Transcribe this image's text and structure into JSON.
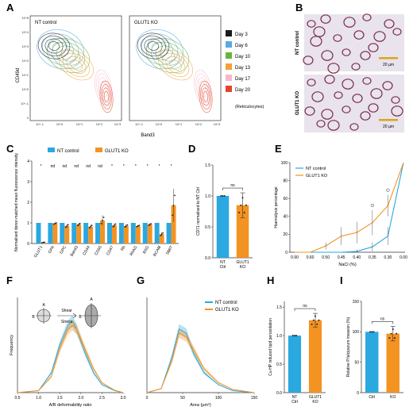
{
  "panel_letters": [
    "A",
    "B",
    "C",
    "D",
    "E",
    "F",
    "G",
    "H",
    "I"
  ],
  "colors": {
    "nt_control": "#2aa8e0",
    "glut1_ko": "#f39321",
    "day3": "#1a1a1a",
    "day6": "#5aa9e0",
    "day10": "#6cb33e",
    "day13": "#f2a23a",
    "day17": "#f6b8c8",
    "day20": "#e2452a",
    "cell_outline": "#7b2b52",
    "micrograph_bg": "#e8e3ec"
  },
  "panel_a": {
    "plots": [
      {
        "label": "NT control"
      },
      {
        "label": "GLUT1 KO"
      }
    ],
    "ylabel": "CD49d",
    "xlabel": "Band3",
    "y_ticks": [
      "10^5",
      "10^4",
      "10^3",
      "10^2",
      "10^1",
      "10^0",
      "10^-1",
      "0"
    ],
    "x_ticks": [
      "10^-1",
      "10^0",
      "10^1",
      "10^2",
      "10^3"
    ],
    "legend": [
      {
        "label": "Day 3",
        "color_key": "day3"
      },
      {
        "label": "Day 6",
        "color_key": "day6"
      },
      {
        "label": "Day 10",
        "color_key": "day10"
      },
      {
        "label": "Day 13",
        "color_key": "day13"
      },
      {
        "label": "Day 17",
        "color_key": "day17"
      },
      {
        "label": "Day 20",
        "color_key": "day20"
      }
    ],
    "legend_note": "(Reticulocytes)"
  },
  "panel_b": {
    "images": [
      {
        "label": "NT control",
        "scale": "20 µm"
      },
      {
        "label": "GLUT1 KO",
        "scale": "20 µm"
      }
    ]
  },
  "chart_data": [
    {
      "panel": "C",
      "type": "bar",
      "title": "",
      "ylabel": "Normalised donor-matched mean fluorescence intensity",
      "ylim": [
        0,
        4
      ],
      "y_ticks": [
        "0",
        "1",
        "2",
        "3",
        "4"
      ],
      "categories": [
        "GLUT1",
        "GPA",
        "GPC",
        "Band3",
        "CD44",
        "CD55",
        "CD47",
        "Rh",
        "RhAG",
        "BSG",
        "BCAM",
        "SMIT"
      ],
      "significance": [
        "*",
        "nd",
        "nd",
        "nd",
        "nd",
        "nd",
        "*",
        "*",
        "*",
        "*",
        "*",
        "*"
      ],
      "series": [
        {
          "name": "NT control",
          "values": [
            1,
            1,
            1,
            1,
            1,
            1,
            1,
            1,
            1,
            1,
            1,
            1
          ],
          "errors": [
            0,
            0,
            0,
            0,
            0,
            0,
            0,
            0,
            0,
            0,
            0,
            0
          ]
        },
        {
          "name": "GLUT1 KO",
          "values": [
            0.05,
            0.97,
            0.85,
            0.92,
            0.82,
            1.12,
            0.88,
            0.85,
            0.85,
            0.92,
            0.45,
            1.85
          ],
          "errors": [
            0.02,
            0.05,
            0.1,
            0.08,
            0.1,
            0.25,
            0.1,
            0.08,
            0.05,
            0.06,
            0.1,
            0.8
          ]
        }
      ]
    },
    {
      "panel": "D",
      "type": "bar",
      "title": "",
      "ylabel": "CD71 normalised to NT Ctrl",
      "ylim": [
        0,
        1.5
      ],
      "y_ticks": [
        "0.0",
        "0.5",
        "1.0",
        "1.5"
      ],
      "categories": [
        "NT Ctrl",
        "GLUT1 KO"
      ],
      "values": [
        1.0,
        0.85
      ],
      "errors": [
        0,
        0.2
      ],
      "significance": "ns"
    },
    {
      "panel": "E",
      "type": "line",
      "title": "",
      "ylabel": "Haemolysis percentage",
      "xlabel": "NaCl (%)",
      "categories": [
        "0.90",
        "0.60",
        "0.50",
        "0.45",
        "0.40",
        "0.35",
        "0.30",
        "0.00"
      ],
      "ylim": [
        0,
        100
      ],
      "y_ticks": [
        "0",
        "20",
        "40",
        "60",
        "80",
        "100"
      ],
      "significance": [
        "",
        "",
        "",
        "",
        "",
        "o",
        "o",
        ""
      ],
      "series": [
        {
          "name": "NT control",
          "values": [
            0,
            0,
            0,
            0,
            1,
            6,
            18,
            100
          ],
          "errors": [
            0,
            0,
            0,
            0,
            2,
            5,
            10,
            0
          ]
        },
        {
          "name": "GLUT1 KO",
          "values": [
            0,
            0,
            7,
            18,
            22,
            33,
            52,
            100
          ],
          "errors": [
            0,
            0,
            4,
            10,
            12,
            14,
            12,
            0
          ]
        }
      ]
    },
    {
      "panel": "F",
      "type": "area",
      "title": "",
      "ylabel": "Frequency",
      "xlabel": "A/B deformability ratio",
      "x_ticks": [
        "0.5",
        "1.0",
        "1.5",
        "2.0",
        "2.5",
        "3.0"
      ],
      "annotations": [
        "A",
        "B",
        "Shear",
        "Stress"
      ],
      "series": [
        {
          "name": "NT control",
          "x": [
            0.5,
            1.0,
            1.3,
            1.5,
            1.7,
            1.8,
            1.9,
            2.1,
            2.3,
            2.5,
            2.8,
            3.0
          ],
          "y": [
            0,
            0.005,
            0.05,
            0.12,
            0.17,
            0.18,
            0.16,
            0.1,
            0.05,
            0.02,
            0.005,
            0
          ]
        },
        {
          "name": "GLUT1 KO",
          "x": [
            0.5,
            1.0,
            1.3,
            1.5,
            1.7,
            1.8,
            1.9,
            2.1,
            2.3,
            2.5,
            2.8,
            3.0
          ],
          "y": [
            0,
            0.005,
            0.04,
            0.11,
            0.16,
            0.17,
            0.16,
            0.11,
            0.06,
            0.025,
            0.006,
            0
          ]
        }
      ]
    },
    {
      "panel": "G",
      "type": "area",
      "title": "",
      "xlabel": "Area (µm²)",
      "x_ticks": [
        "0",
        "50",
        "100",
        "150"
      ],
      "series": [
        {
          "name": "NT control",
          "x": [
            0,
            20,
            35,
            45,
            55,
            65,
            80,
            100,
            120,
            150
          ],
          "y": [
            0,
            0.01,
            0.09,
            0.16,
            0.15,
            0.1,
            0.05,
            0.02,
            0.005,
            0
          ]
        },
        {
          "name": "GLUT1 KO",
          "x": [
            0,
            20,
            35,
            45,
            55,
            65,
            80,
            100,
            120,
            150
          ],
          "y": [
            0,
            0.01,
            0.08,
            0.15,
            0.14,
            0.11,
            0.06,
            0.025,
            0.008,
            0
          ]
        }
      ]
    },
    {
      "panel": "H",
      "type": "bar",
      "title": "",
      "ylabel": "Cu-HP induced lipid peroxidation",
      "ylim": [
        0,
        1.6
      ],
      "y_ticks": [
        "0.0",
        "0.5",
        "1.0",
        "1.5"
      ],
      "categories": [
        "NT Ctrl",
        "GLUT1 KO"
      ],
      "values": [
        1.0,
        1.27
      ],
      "errors": [
        0,
        0.12
      ],
      "significance": "ns"
    },
    {
      "panel": "I",
      "type": "bar",
      "title": "",
      "ylabel": "Relative P.falciparum invasion (%)",
      "ylim": [
        0,
        150
      ],
      "y_ticks": [
        "0",
        "50",
        "100",
        "150"
      ],
      "categories": [
        "Ctrl",
        "KO"
      ],
      "values": [
        100,
        97
      ],
      "errors": [
        0,
        12
      ],
      "significance": "ns"
    }
  ]
}
